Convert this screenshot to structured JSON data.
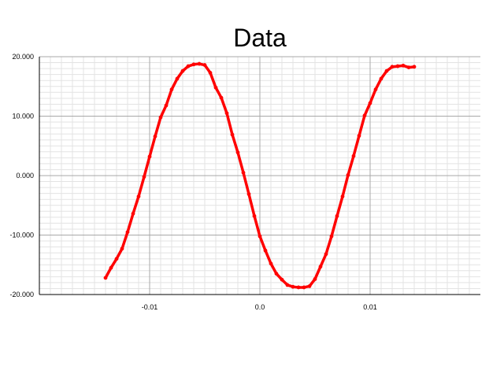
{
  "chart_data": {
    "type": "scatter",
    "title": "Data",
    "xlabel": "",
    "ylabel": "",
    "xlim": [
      -0.02,
      0.02
    ],
    "ylim": [
      -20,
      20
    ],
    "x_ticks": [
      -0.01,
      0.0,
      0.01
    ],
    "x_tick_labels": [
      "-0.01",
      "0.0",
      "0.01"
    ],
    "y_ticks": [
      -20,
      -10,
      0,
      10,
      20
    ],
    "y_tick_labels": [
      "-20.000",
      "-10.000",
      "0.000",
      "10.000",
      "20.000"
    ],
    "grid": true,
    "legend": "none",
    "series": [
      {
        "color": "#ff0000",
        "x": [
          -0.014,
          -0.0135,
          -0.013,
          -0.0125,
          -0.012,
          -0.0115,
          -0.011,
          -0.0105,
          -0.01,
          -0.0095,
          -0.009,
          -0.0085,
          -0.008,
          -0.0075,
          -0.007,
          -0.0065,
          -0.006,
          -0.0055,
          -0.005,
          -0.0045,
          -0.004,
          -0.0035,
          -0.003,
          -0.0025,
          -0.002,
          -0.0015,
          -0.001,
          -0.0005,
          0.0,
          0.0005,
          0.001,
          0.0015,
          0.002,
          0.0025,
          0.003,
          0.0035,
          0.004,
          0.0045,
          0.005,
          0.0055,
          0.006,
          0.0065,
          0.007,
          0.0075,
          0.008,
          0.0085,
          0.009,
          0.0095,
          0.01,
          0.0105,
          0.011,
          0.0115,
          0.012,
          0.0125,
          0.013,
          0.0135,
          0.014
        ],
        "y": [
          -17.2,
          -15.5,
          -14.0,
          -12.3,
          -9.5,
          -6.4,
          -3.5,
          -0.2,
          3.2,
          6.6,
          9.8,
          11.8,
          14.5,
          16.3,
          17.6,
          18.4,
          18.7,
          18.8,
          18.6,
          17.3,
          14.8,
          13.1,
          10.5,
          6.9,
          3.9,
          0.5,
          -3.1,
          -6.8,
          -10.2,
          -12.6,
          -14.8,
          -16.5,
          -17.5,
          -18.4,
          -18.7,
          -18.8,
          -18.8,
          -18.6,
          -17.4,
          -15.3,
          -13.2,
          -10.2,
          -6.8,
          -3.5,
          0.1,
          3.3,
          6.7,
          10.1,
          12.2,
          14.5,
          16.3,
          17.6,
          18.3,
          18.4,
          18.5,
          18.2,
          18.3
        ]
      }
    ]
  }
}
